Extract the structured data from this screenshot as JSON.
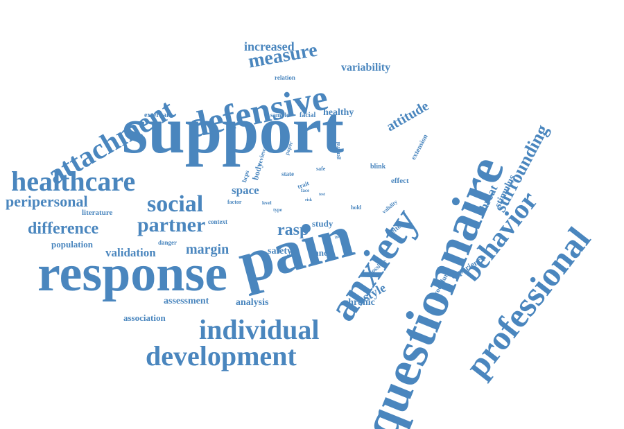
{
  "color": "#4A86BE",
  "words": [
    {
      "text": "support"
    },
    {
      "text": "questionnaire"
    },
    {
      "text": "response"
    },
    {
      "text": "pain"
    },
    {
      "text": "anxiety"
    },
    {
      "text": "professional"
    },
    {
      "text": "defensive"
    },
    {
      "text": "attachment"
    },
    {
      "text": "healthcare"
    },
    {
      "text": "individual"
    },
    {
      "text": "development"
    },
    {
      "text": "behavior"
    },
    {
      "text": "social"
    },
    {
      "text": "measure"
    },
    {
      "text": "partner"
    },
    {
      "text": "difference"
    },
    {
      "text": "peripersonal"
    },
    {
      "text": "surrounding"
    },
    {
      "text": "attitude"
    },
    {
      "text": "increased"
    },
    {
      "text": "variability"
    },
    {
      "text": "rasp"
    },
    {
      "text": "validation"
    },
    {
      "text": "margin"
    },
    {
      "text": "space"
    },
    {
      "text": "style"
    },
    {
      "text": "assessment"
    },
    {
      "text": "analysis"
    },
    {
      "text": "association"
    },
    {
      "text": "population"
    },
    {
      "text": "threat"
    },
    {
      "text": "stimulus"
    },
    {
      "text": "healthy"
    },
    {
      "text": "safety"
    },
    {
      "text": "hand"
    },
    {
      "text": "chronic"
    },
    {
      "text": "study"
    },
    {
      "text": "experience"
    },
    {
      "text": "procedure"
    },
    {
      "text": "literature"
    },
    {
      "text": "external"
    },
    {
      "text": "relation"
    },
    {
      "text": "sample"
    },
    {
      "text": "facial"
    },
    {
      "text": "effect"
    },
    {
      "text": "blink"
    },
    {
      "text": "extension"
    },
    {
      "text": "context"
    },
    {
      "text": "danger"
    },
    {
      "text": "factor"
    },
    {
      "text": "state"
    },
    {
      "text": "safe"
    },
    {
      "text": "hold"
    },
    {
      "text": "better"
    },
    {
      "text": "possible"
    },
    {
      "text": "validity"
    },
    {
      "text": "general"
    },
    {
      "text": "paper"
    },
    {
      "text": "body"
    },
    {
      "text": "review"
    },
    {
      "text": "hcps"
    },
    {
      "text": "trait"
    },
    {
      "text": "face"
    },
    {
      "text": "level"
    },
    {
      "text": "type"
    },
    {
      "text": "initial"
    },
    {
      "text": "risk"
    },
    {
      "text": "test"
    }
  ]
}
